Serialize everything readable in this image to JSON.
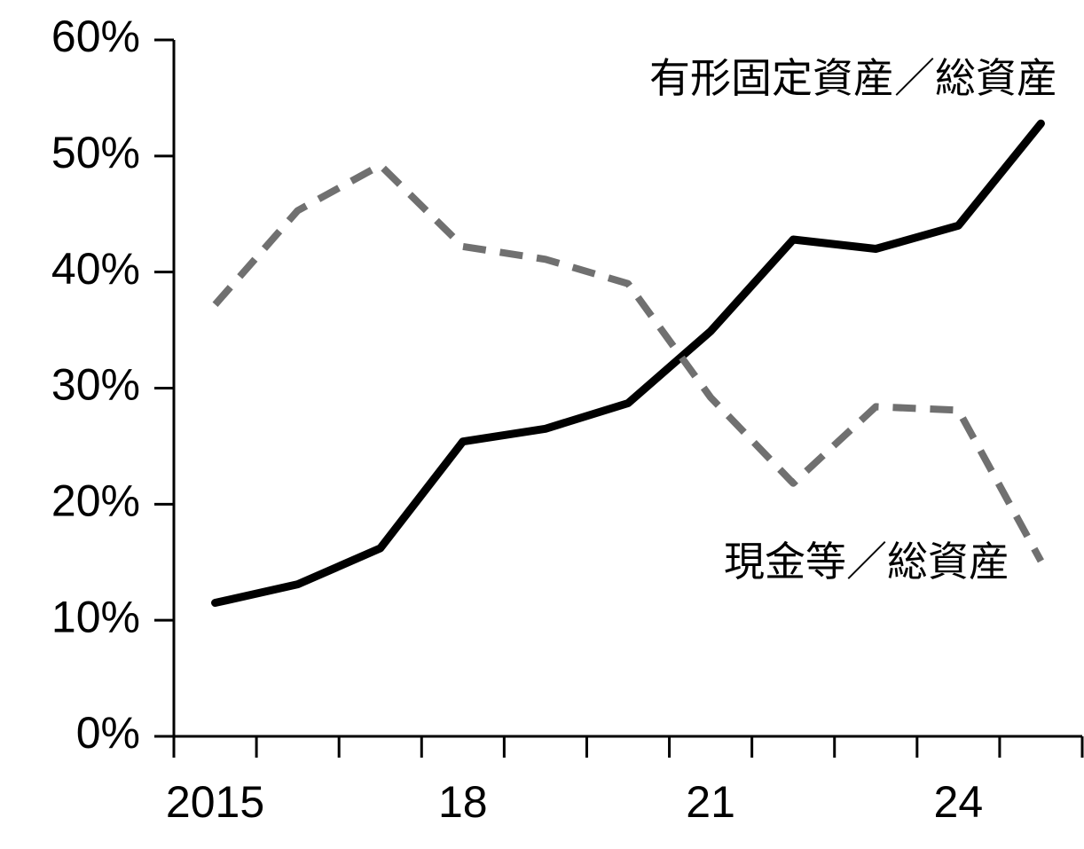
{
  "chart_data": {
    "type": "line",
    "categories": [
      "2015",
      null,
      null,
      "18",
      null,
      null,
      "21",
      null,
      null,
      "24",
      null
    ],
    "series": [
      {
        "name": "有形固定資産／総資産",
        "color": "#000000",
        "dash": false,
        "values": [
          11.5,
          13.1,
          16.2,
          25.4,
          26.5,
          28.7,
          34.9,
          42.8,
          42.0,
          44.0,
          52.8
        ]
      },
      {
        "name": "現金等／総資産",
        "color": "#707070",
        "dash": true,
        "values": [
          37.2,
          45.3,
          49.2,
          42.2,
          41.1,
          39.0,
          29.2,
          21.8,
          28.4,
          28.1,
          15.1
        ]
      }
    ],
    "ylim": [
      0,
      60
    ],
    "yticks": [
      {
        "value": 0,
        "label": "0%"
      },
      {
        "value": 10,
        "label": "10%"
      },
      {
        "value": 20,
        "label": "20%"
      },
      {
        "value": 30,
        "label": "30%"
      },
      {
        "value": 40,
        "label": "40%"
      },
      {
        "value": 50,
        "label": "50%"
      },
      {
        "value": 60,
        "label": "60%"
      }
    ],
    "grid": false
  }
}
